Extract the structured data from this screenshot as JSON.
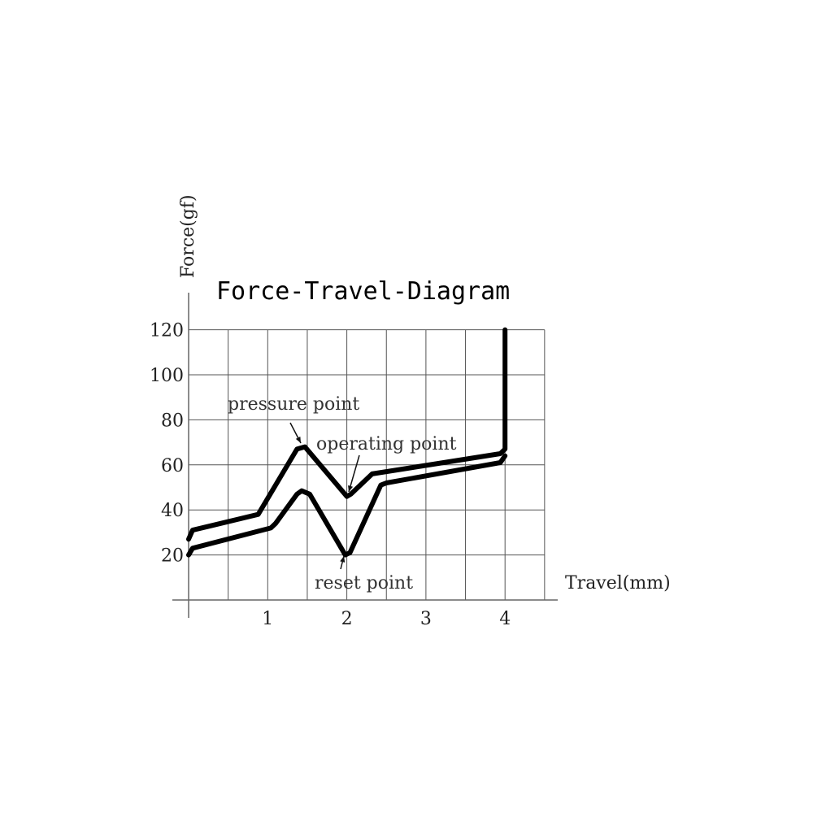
{
  "chart_data": {
    "type": "line",
    "title": "Force-Travel-Diagram",
    "xlabel": "Travel(mm)",
    "ylabel": "Force(gf)",
    "xlim": [
      0,
      4.5
    ],
    "ylim": [
      0,
      120
    ],
    "grid": true,
    "x_ticks": [
      1,
      2,
      3,
      4
    ],
    "x_tick_labels": [
      "1",
      "2",
      "3",
      "4"
    ],
    "y_ticks": [
      20,
      40,
      60,
      80,
      100,
      120
    ],
    "y_tick_labels": [
      "20",
      "40",
      "60",
      "80",
      "100",
      "120"
    ],
    "series": [
      {
        "x": [
          0,
          0.05,
          0.88,
          1.37,
          1.47,
          2.0,
          2.05,
          2.32,
          3.94,
          4.0,
          4.0
        ],
        "y": [
          27,
          31,
          38,
          67,
          68,
          46,
          47,
          56,
          65,
          67,
          120
        ]
      },
      {
        "x": [
          0,
          0.05,
          1.04,
          1.1,
          1.37,
          1.43,
          1.53,
          1.98,
          2.04,
          2.43,
          2.5,
          3.94,
          4.0
        ],
        "y": [
          20,
          23,
          32,
          34,
          47,
          48.5,
          47,
          20,
          21,
          51,
          52,
          61,
          64
        ]
      }
    ],
    "annotations": [
      {
        "text": "pressure point",
        "x": 1.4,
        "y": 68
      },
      {
        "text": "operating point",
        "x": 2.0,
        "y": 46
      },
      {
        "text": "reset point",
        "x": 2.0,
        "y": 20
      }
    ],
    "line_color": "#000000"
  }
}
